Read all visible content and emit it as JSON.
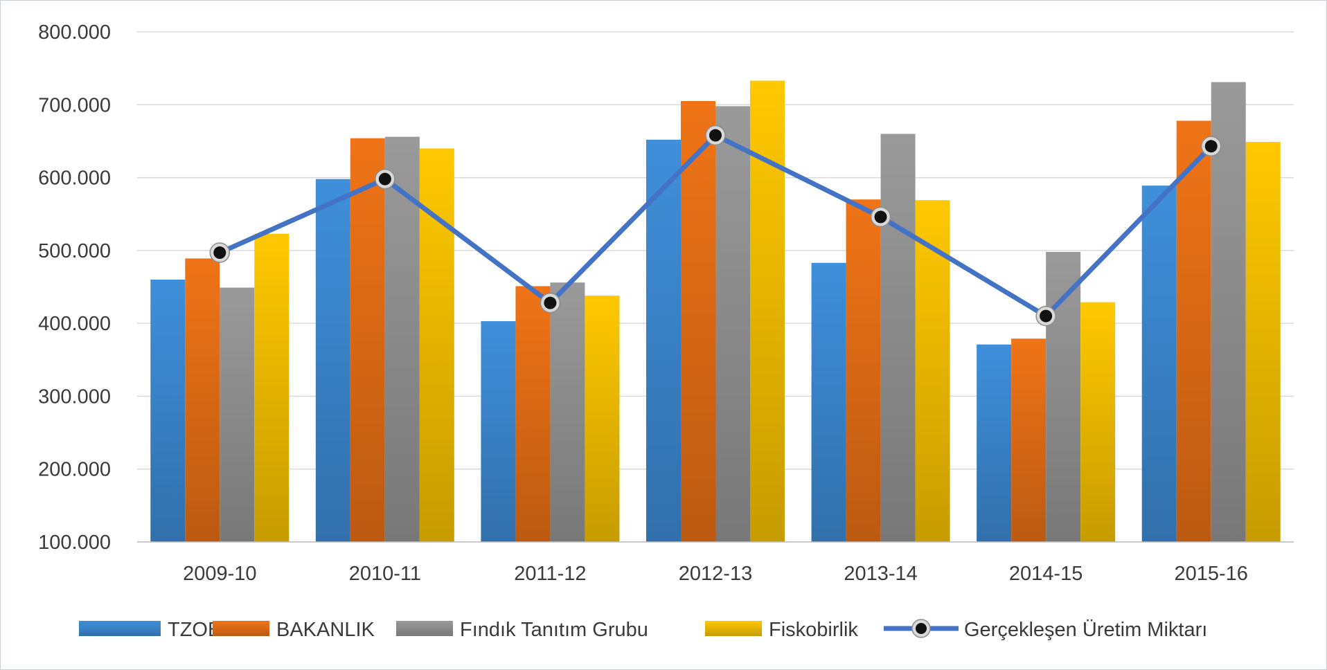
{
  "chart_data": {
    "type": "bar",
    "title": "",
    "xlabel": "",
    "ylabel": "",
    "ylim": [
      100000,
      800000
    ],
    "yticks": [
      100000,
      200000,
      300000,
      400000,
      500000,
      600000,
      700000,
      800000
    ],
    "ytick_labels": [
      "100.000",
      "200.000",
      "300.000",
      "400.000",
      "500.000",
      "600.000",
      "700.000",
      "800.000"
    ],
    "categories": [
      "2009-10",
      "2010-11",
      "2011-12",
      "2012-13",
      "2013-14",
      "2014-15",
      "2015-16"
    ],
    "series": [
      {
        "name": "TZOB",
        "kind": "bar",
        "color": "#3f8fdb",
        "values": [
          460000,
          598000,
          403000,
          652000,
          483000,
          371000,
          589000
        ]
      },
      {
        "name": "BAKANLIK",
        "kind": "bar",
        "color": "#f07417",
        "values": [
          489000,
          654000,
          451000,
          705000,
          570000,
          379000,
          678000
        ]
      },
      {
        "name": "Fındık Tanıtım Grubu",
        "kind": "bar",
        "color": "#9a9a9a",
        "values": [
          449000,
          656000,
          456000,
          698000,
          660000,
          498000,
          731000
        ]
      },
      {
        "name": "Fiskobirlik",
        "kind": "bar",
        "color": "#ffc800",
        "values": [
          523000,
          640000,
          438000,
          733000,
          569000,
          429000,
          649000
        ]
      },
      {
        "name": "Gerçekleşen Üretim Miktarı",
        "kind": "line",
        "color": "#4472c4",
        "values": [
          497000,
          598000,
          428000,
          658000,
          546000,
          410000,
          643000
        ]
      }
    ],
    "grid": true,
    "legend_position": "bottom"
  }
}
